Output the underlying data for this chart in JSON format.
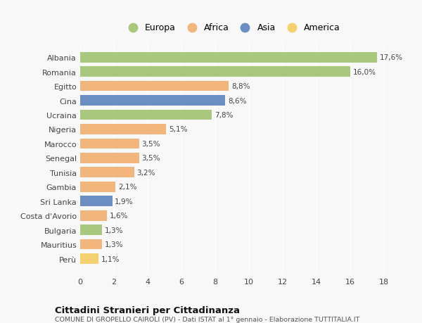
{
  "countries": [
    "Albania",
    "Romania",
    "Egitto",
    "Cina",
    "Ucraina",
    "Nigeria",
    "Marocco",
    "Senegal",
    "Tunisia",
    "Gambia",
    "Sri Lanka",
    "Costa d'Avorio",
    "Bulgaria",
    "Mauritius",
    "Perù"
  ],
  "values": [
    17.6,
    16.0,
    8.8,
    8.6,
    7.8,
    5.1,
    3.5,
    3.5,
    3.2,
    2.1,
    1.9,
    1.6,
    1.3,
    1.3,
    1.1
  ],
  "labels": [
    "17,6%",
    "16,0%",
    "8,8%",
    "8,6%",
    "7,8%",
    "5,1%",
    "3,5%",
    "3,5%",
    "3,2%",
    "2,1%",
    "1,9%",
    "1,6%",
    "1,3%",
    "1,3%",
    "1,1%"
  ],
  "continents": [
    "Europa",
    "Europa",
    "Africa",
    "Asia",
    "Europa",
    "Africa",
    "Africa",
    "Africa",
    "Africa",
    "Africa",
    "Asia",
    "Africa",
    "Europa",
    "Africa",
    "America"
  ],
  "colors": {
    "Europa": "#a8c87e",
    "Africa": "#f2b57c",
    "Asia": "#6b8fc2",
    "America": "#f5d06e"
  },
  "legend_order": [
    "Europa",
    "Africa",
    "Asia",
    "America"
  ],
  "title": "Cittadini Stranieri per Cittadinanza",
  "subtitle": "COMUNE DI GROPELLO CAIROLI (PV) - Dati ISTAT al 1° gennaio - Elaborazione TUTTITALIA.IT",
  "xlim": [
    0,
    18
  ],
  "xticks": [
    0,
    2,
    4,
    6,
    8,
    10,
    12,
    14,
    16,
    18
  ],
  "background_color": "#f8f8f8",
  "grid_color": "#ffffff",
  "bar_height": 0.72
}
